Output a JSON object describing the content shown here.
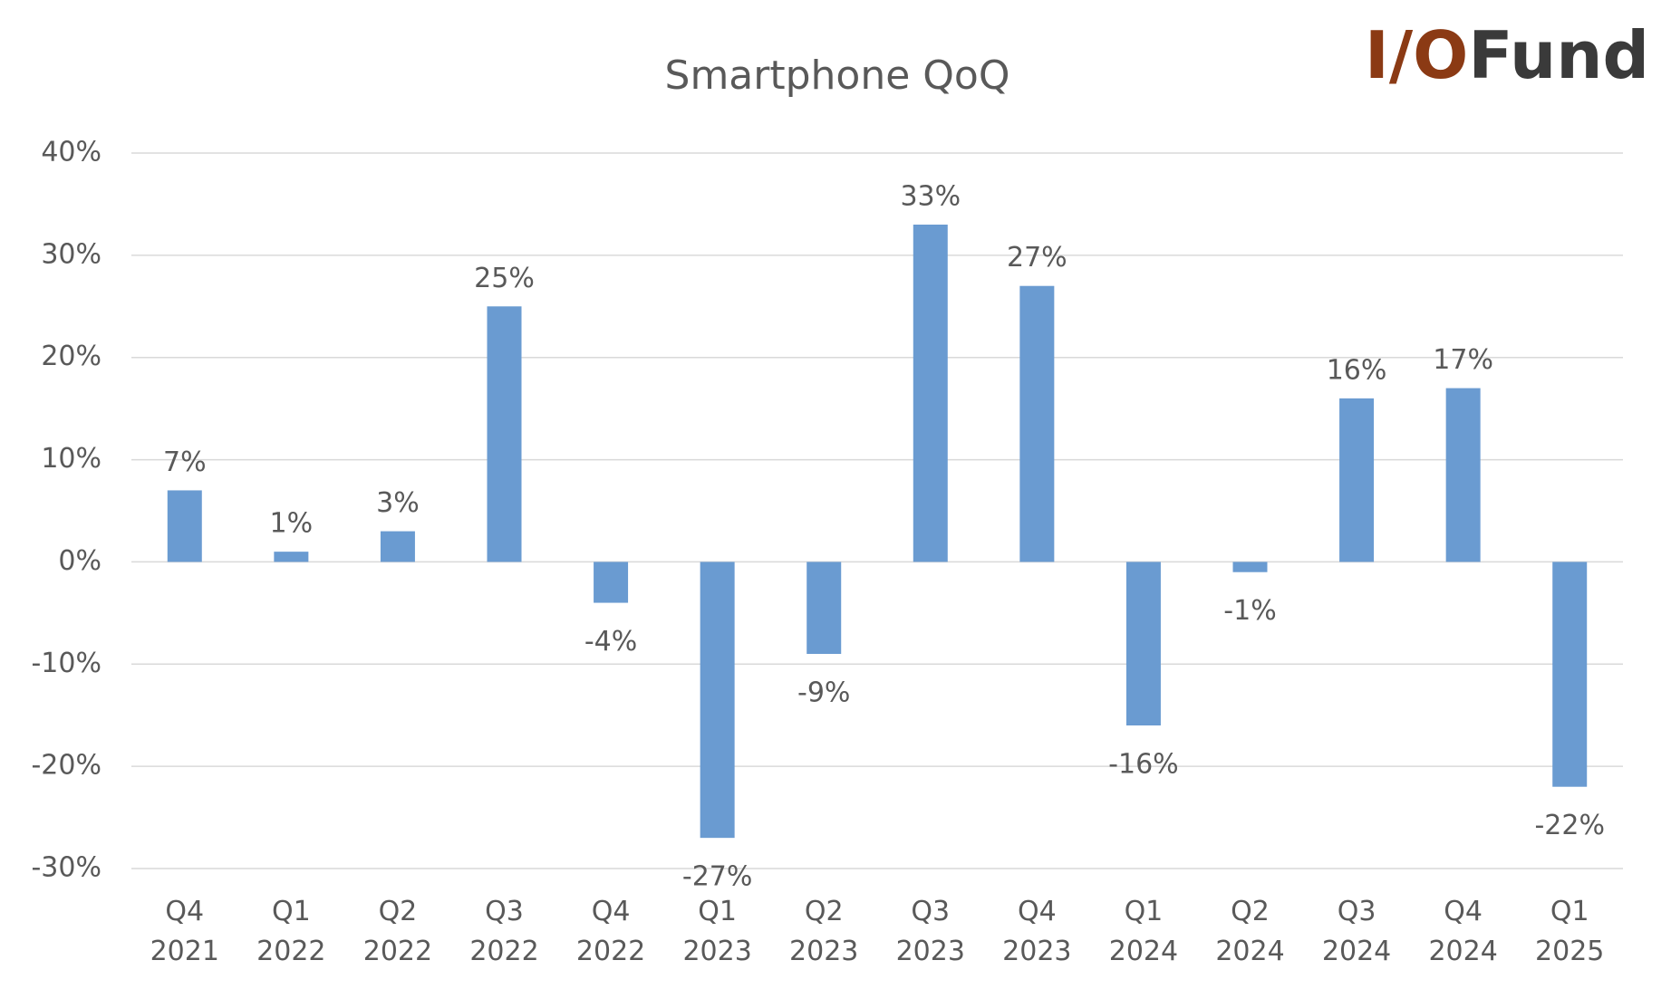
{
  "chart_data": {
    "type": "bar",
    "title": "Smartphone QoQ",
    "logo": {
      "accent": "I/O",
      "rest": "Fund"
    },
    "categories": [
      "Q4 2021",
      "Q1 2022",
      "Q2 2022",
      "Q3 2022",
      "Q4 2022",
      "Q1 2023",
      "Q2 2023",
      "Q3 2023",
      "Q4 2023",
      "Q1 2024",
      "Q2 2024",
      "Q3 2024",
      "Q4 2024",
      "Q1 2025"
    ],
    "values": [
      7,
      1,
      3,
      25,
      -4,
      -27,
      -9,
      33,
      27,
      -16,
      -1,
      16,
      17,
      -22
    ],
    "value_labels": [
      "7%",
      "1%",
      "3%",
      "25%",
      "-4%",
      "-27%",
      "-9%",
      "33%",
      "27%",
      "-16%",
      "-1%",
      "16%",
      "17%",
      "-22%"
    ],
    "color": "#6a9bd1",
    "ylim": [
      -30,
      40
    ],
    "yticks": [
      {
        "value": -30,
        "label": "-30%"
      },
      {
        "value": -20,
        "label": "-20%"
      },
      {
        "value": -10,
        "label": "-10%"
      },
      {
        "value": 0,
        "label": "0%"
      },
      {
        "value": 10,
        "label": "10%"
      },
      {
        "value": 20,
        "label": "20%"
      },
      {
        "value": 30,
        "label": "30%"
      },
      {
        "value": 40,
        "label": "40%"
      }
    ],
    "grid": true
  }
}
